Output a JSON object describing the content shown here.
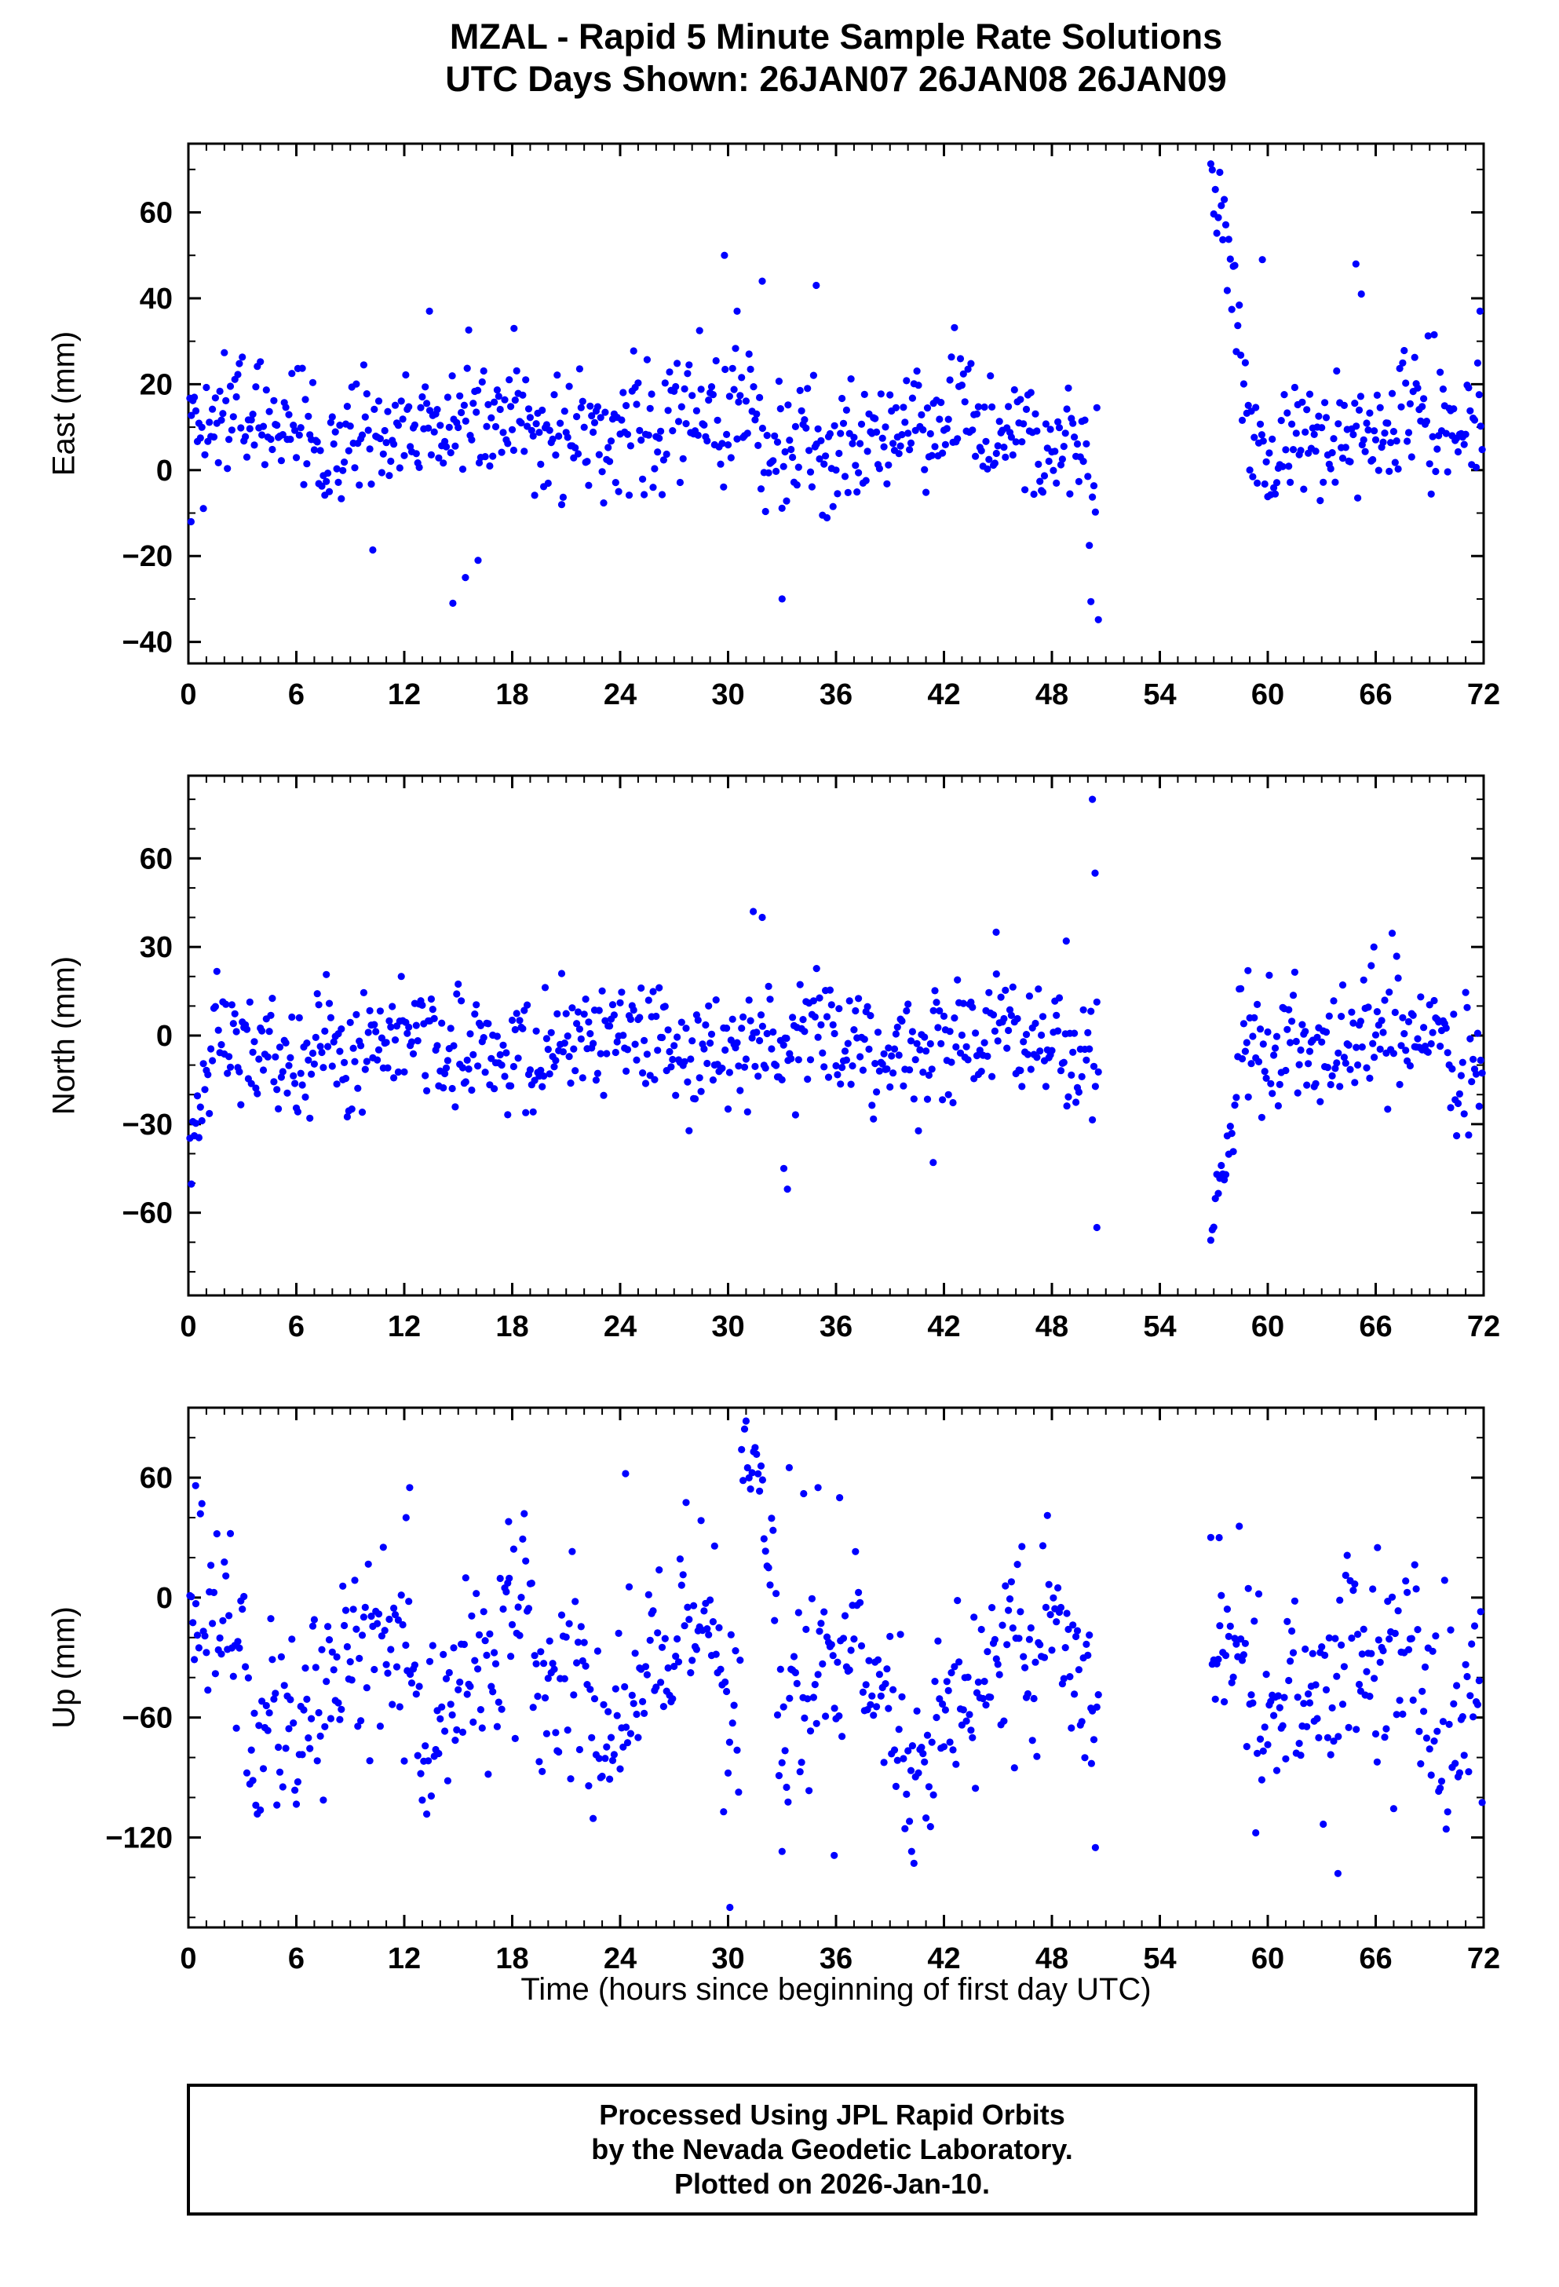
{
  "title": {
    "line1": "MZAL - Rapid 5 Minute Sample Rate Solutions",
    "line2": "UTC Days Shown:  26JAN07 26JAN08 26JAN09"
  },
  "xlabel": "Time (hours since beginning of first day UTC)",
  "footer": {
    "line1": "Processed Using JPL Rapid Orbits",
    "line2": "by the Nevada Geodetic Laboratory.",
    "line3": "Plotted on 2026-Jan-10."
  },
  "style": {
    "point_color": "#0000ff",
    "frame_color": "#000000",
    "text_color": "#000000"
  },
  "chart_data": {
    "type": "scatter",
    "title": "MZAL - Rapid 5 Minute Sample Rate Solutions",
    "subtitle": "UTC Days Shown:  26JAN07 26JAN08 26JAN09",
    "station": "MZAL",
    "utc_days": [
      "26JAN07",
      "26JAN08",
      "26JAN09"
    ],
    "xlabel": "Time (hours since beginning of first day UTC)",
    "x": {
      "min": 0,
      "max": 72,
      "major_ticks": [
        0,
        6,
        12,
        18,
        24,
        30,
        36,
        42,
        48,
        54,
        60,
        66,
        72
      ],
      "minor_step": 1
    },
    "sample_interval_hours": 0.0833333,
    "gap_hours": [
      50.62,
      56.78
    ],
    "grid": false,
    "legend": "none",
    "panels": [
      {
        "name": "east",
        "ylabel": "East (mm)",
        "unit": "mm",
        "ylim": [
          -45,
          76
        ],
        "yticks": [
          -40,
          -20,
          0,
          20,
          40,
          60
        ],
        "y_minor_step": 10,
        "clamp": [
          -44,
          75
        ],
        "seed": 20107,
        "mean": 9,
        "std": 7,
        "wander": [
          {
            "amp": 4,
            "period": 13
          },
          {
            "amp": 3,
            "period": 3.1
          }
        ],
        "events": [
          {
            "type": "burst",
            "t0": 50.0,
            "t1": 50.6,
            "lo": -41,
            "hi": 20
          },
          {
            "type": "ramp",
            "t0": 56.8,
            "t1": 58.8,
            "v0": 72,
            "v1": 24,
            "noise": 7
          }
        ],
        "singles": [
          [
            0.15,
            -12
          ],
          [
            13.4,
            37
          ],
          [
            14.7,
            -31
          ],
          [
            15.4,
            -25
          ],
          [
            16.1,
            -21
          ],
          [
            18.1,
            33
          ],
          [
            29.8,
            50
          ],
          [
            30.5,
            37
          ],
          [
            31.9,
            44
          ],
          [
            33.0,
            -30
          ],
          [
            34.9,
            43
          ],
          [
            59.7,
            49
          ],
          [
            64.9,
            48
          ],
          [
            65.2,
            41
          ],
          [
            71.8,
            37
          ]
        ]
      },
      {
        "name": "north",
        "ylabel": "North (mm)",
        "unit": "mm",
        "ylim": [
          -88,
          88
        ],
        "yticks": [
          -60,
          -30,
          0,
          30,
          60
        ],
        "y_minor_step": 10,
        "clamp": [
          -86,
          86
        ],
        "seed": 20108,
        "mean": -3,
        "std": 10,
        "wander": [
          {
            "amp": 4,
            "period": 11
          },
          {
            "amp": 3,
            "period": 2.7
          }
        ],
        "events": [
          {
            "type": "ramp",
            "t0": 0.05,
            "t1": 1.4,
            "v0": -44,
            "v1": 0,
            "noise": 9
          },
          {
            "type": "burst",
            "t0": 50.0,
            "t1": 50.55,
            "lo": -30,
            "hi": 30
          },
          {
            "type": "ramp",
            "t0": 56.8,
            "t1": 58.4,
            "v0": -74,
            "v1": -12,
            "noise": 8
          }
        ],
        "singles": [
          [
            31.4,
            42
          ],
          [
            31.9,
            40
          ],
          [
            33.1,
            -45
          ],
          [
            33.3,
            -52
          ],
          [
            41.4,
            -43
          ],
          [
            44.9,
            35
          ],
          [
            48.8,
            32
          ],
          [
            50.25,
            80
          ],
          [
            50.4,
            55
          ],
          [
            50.5,
            -65
          ],
          [
            58.9,
            22
          ],
          [
            65.9,
            30
          ]
        ]
      },
      {
        "name": "up",
        "ylabel": "Up (mm)",
        "unit": "mm",
        "ylim": [
          -165,
          95
        ],
        "yticks": [
          -120,
          -60,
          0,
          60
        ],
        "y_minor_step": 20,
        "clamp": [
          -160,
          92
        ],
        "seed": 20109,
        "mean": -38,
        "std": 24,
        "wander": [
          {
            "amp": 20,
            "period": 9.5
          },
          {
            "amp": 12,
            "period": 3.3
          }
        ],
        "events": [
          {
            "type": "shift",
            "t0": 0,
            "t1": 3.2,
            "dv": 30
          },
          {
            "type": "shift",
            "t0": 4.6,
            "t1": 9.2,
            "dv": -18
          },
          {
            "type": "ramp",
            "t0": 30.7,
            "t1": 32.7,
            "v0": 85,
            "v1": 5,
            "noise": 18
          },
          {
            "type": "shift",
            "t0": 37.5,
            "t1": 41.5,
            "dv": -30
          }
        ],
        "singles": [
          [
            0.4,
            56
          ],
          [
            12.1,
            40
          ],
          [
            12.3,
            55
          ],
          [
            17.8,
            38
          ],
          [
            24.3,
            62
          ],
          [
            30.1,
            -155
          ],
          [
            33.0,
            -127
          ],
          [
            33.4,
            65
          ],
          [
            34.2,
            52
          ],
          [
            35.0,
            55
          ],
          [
            35.9,
            -129
          ],
          [
            36.2,
            50
          ],
          [
            40.2,
            -127
          ],
          [
            50.2,
            -83
          ],
          [
            57.3,
            30
          ],
          [
            63.9,
            -138
          ],
          [
            66.1,
            25
          ]
        ]
      }
    ]
  }
}
